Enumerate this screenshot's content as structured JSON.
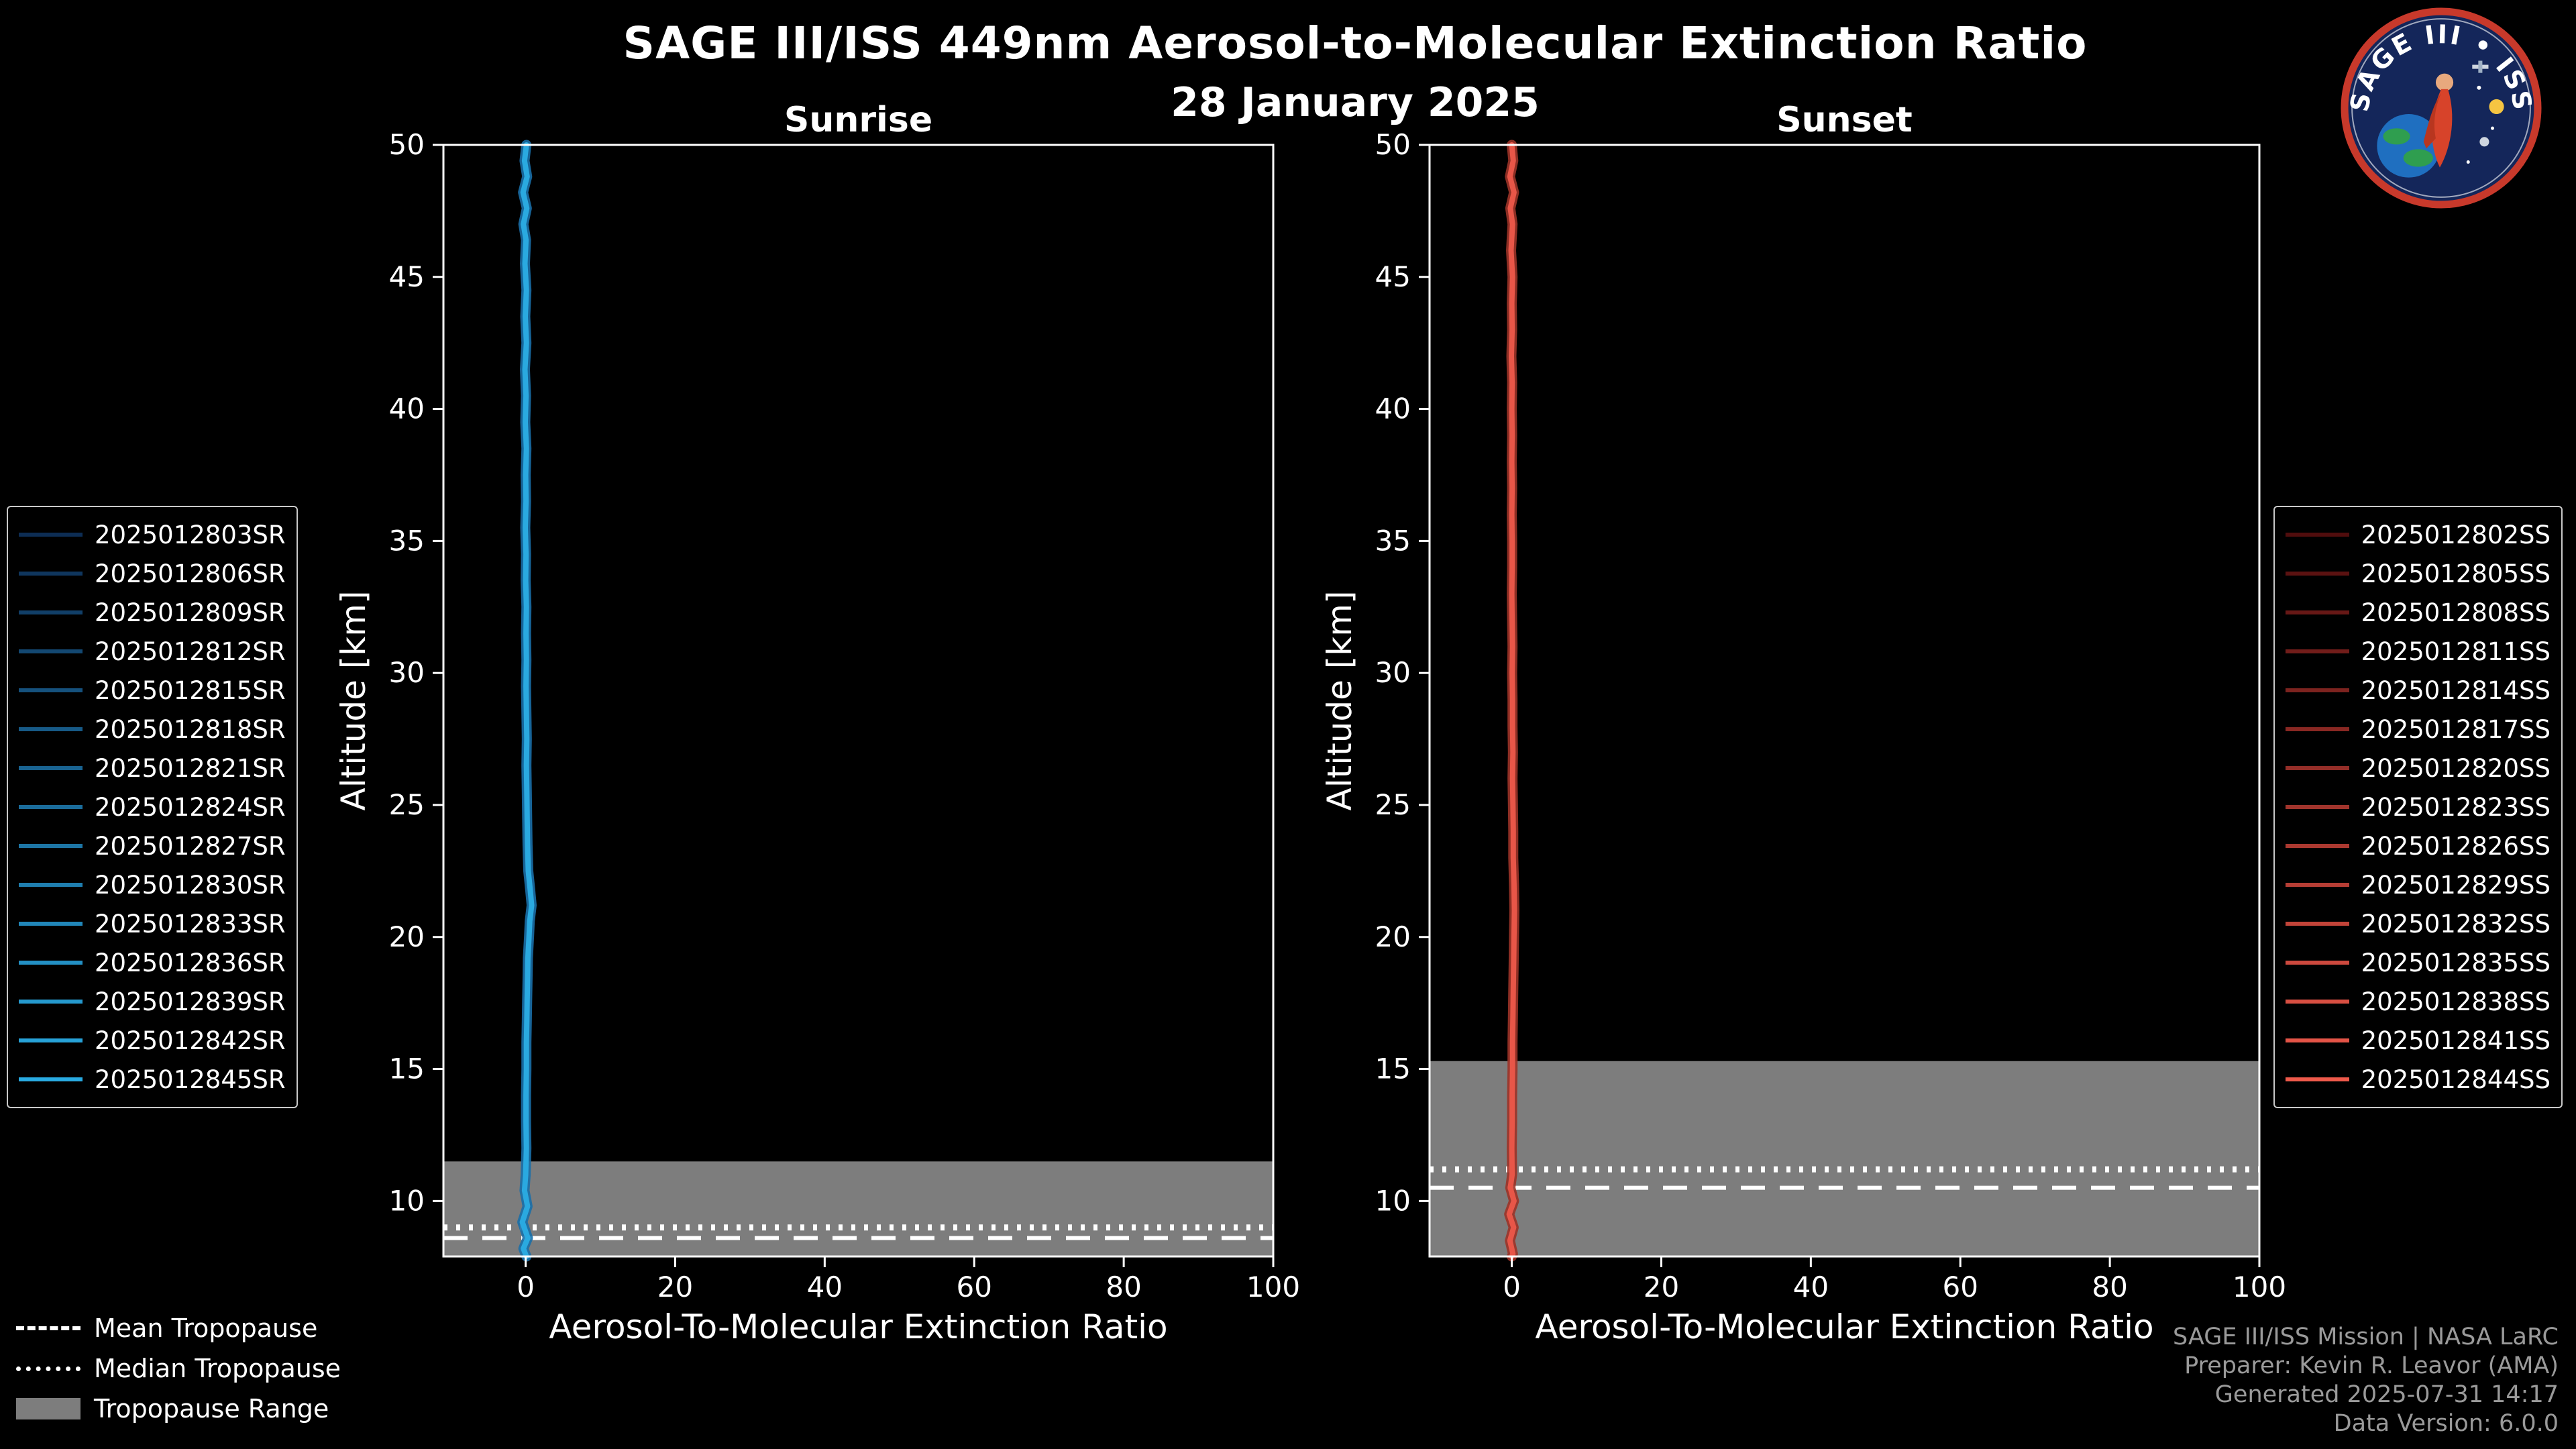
{
  "header": {
    "title": "SAGE III/ISS 449nm Aerosol-to-Molecular Extinction Ratio",
    "date": "28 January 2025"
  },
  "logo": {
    "title": "SAGE III • ISS"
  },
  "tropopause_legend": {
    "mean": "Mean Tropopause",
    "median": "Median Tropopause",
    "range": "Tropopause Range"
  },
  "credits": {
    "line1": "SAGE III/ISS Mission | NASA LaRC",
    "line2": "Preparer: Kevin R. Leavor (AMA)",
    "line3": "Generated 2025-07-31 14:17",
    "line4": "Data Version: 6.0.0"
  },
  "chart_data": [
    {
      "type": "line",
      "title": "Sunrise",
      "xlabel": "Aerosol-To-Molecular Extinction Ratio",
      "ylabel": "Altitude [km]",
      "xlim": [
        -11,
        100
      ],
      "ylim": [
        7.9,
        50
      ],
      "xticks": [
        0,
        20,
        40,
        60,
        80,
        100
      ],
      "yticks": [
        10,
        15,
        20,
        25,
        30,
        35,
        40,
        45,
        50
      ],
      "grid": false,
      "legend_position": "outside-left",
      "profile_color": "#2aa9e0",
      "profile_shadow_color": "#1a6fa8",
      "band_color": "#7d7d7d",
      "mean_tropopause_km": 8.6,
      "median_tropopause_km": 9.0,
      "tropopause_range_km": [
        7.9,
        11.5
      ],
      "series": [
        {
          "name": "2025012803SR",
          "color": "#0d2d54"
        },
        {
          "name": "2025012806SR",
          "color": "#0f365e"
        },
        {
          "name": "2025012809SR",
          "color": "#113f68"
        },
        {
          "name": "2025012812SR",
          "color": "#134872"
        },
        {
          "name": "2025012815SR",
          "color": "#15517d"
        },
        {
          "name": "2025012818SR",
          "color": "#175a87"
        },
        {
          "name": "2025012821SR",
          "color": "#196391"
        },
        {
          "name": "2025012824SR",
          "color": "#1b6c9b"
        },
        {
          "name": "2025012827SR",
          "color": "#1d75a5"
        },
        {
          "name": "2025012830SR",
          "color": "#1f7eaf"
        },
        {
          "name": "2025012833SR",
          "color": "#2187b9"
        },
        {
          "name": "2025012836SR",
          "color": "#2390c4"
        },
        {
          "name": "2025012839SR",
          "color": "#2599ce"
        },
        {
          "name": "2025012842SR",
          "color": "#27a2d8"
        },
        {
          "name": "2025012845SR",
          "color": "#29abe2"
        }
      ],
      "profile": [
        [
          50,
          0.1
        ],
        [
          49.4,
          -0.15
        ],
        [
          48.8,
          0.2
        ],
        [
          48.2,
          -0.35
        ],
        [
          47.6,
          0.15
        ],
        [
          47,
          -0.3
        ],
        [
          46.4,
          0.05
        ],
        [
          45.5,
          -0.1
        ],
        [
          44.5,
          0.1
        ],
        [
          43.5,
          -0.05
        ],
        [
          42.5,
          0.1
        ],
        [
          41.5,
          -0.1
        ],
        [
          40.5,
          0.05
        ],
        [
          39.5,
          -0.05
        ],
        [
          38.5,
          0.1
        ],
        [
          37.5,
          0
        ],
        [
          36.5,
          0.05
        ],
        [
          35.5,
          -0.05
        ],
        [
          34.5,
          0.05
        ],
        [
          33.5,
          0
        ],
        [
          32.5,
          0.1
        ],
        [
          31.5,
          0.05
        ],
        [
          30.5,
          0.1
        ],
        [
          29.5,
          0.05
        ],
        [
          28.5,
          0.1
        ],
        [
          27.5,
          0.15
        ],
        [
          26.5,
          0.1
        ],
        [
          25.5,
          0.15
        ],
        [
          24.5,
          0.2
        ],
        [
          23.5,
          0.25
        ],
        [
          22.5,
          0.35
        ],
        [
          21.8,
          0.6
        ],
        [
          21.2,
          0.8
        ],
        [
          20.6,
          0.55
        ],
        [
          20,
          0.45
        ],
        [
          19.2,
          0.3
        ],
        [
          18.4,
          0.25
        ],
        [
          17.6,
          0.2
        ],
        [
          16.8,
          0.15
        ],
        [
          16,
          0.1
        ],
        [
          15,
          0.1
        ],
        [
          14,
          0.05
        ],
        [
          13,
          0.05
        ],
        [
          12,
          0.1
        ],
        [
          11,
          0
        ],
        [
          10.4,
          -0.15
        ],
        [
          9.8,
          0.25
        ],
        [
          9.2,
          -0.45
        ],
        [
          8.6,
          0.3
        ],
        [
          8.2,
          -0.3
        ],
        [
          7.9,
          0.1
        ]
      ]
    },
    {
      "type": "line",
      "title": "Sunset",
      "xlabel": "Aerosol-To-Molecular Extinction Ratio",
      "ylabel": "Altitude [km]",
      "xlim": [
        -11,
        100
      ],
      "ylim": [
        7.9,
        50
      ],
      "xticks": [
        0,
        20,
        40,
        60,
        80,
        100
      ],
      "yticks": [
        10,
        15,
        20,
        25,
        30,
        35,
        40,
        45,
        50
      ],
      "grid": false,
      "legend_position": "outside-right",
      "profile_color": "#e85648",
      "profile_shadow_color": "#9c3328",
      "band_color": "#7d7d7d",
      "mean_tropopause_km": 10.5,
      "median_tropopause_km": 11.2,
      "tropopause_range_km": [
        7.9,
        15.3
      ],
      "series": [
        {
          "name": "2025012802SS",
          "color": "#500d0d"
        },
        {
          "name": "2025012805SS",
          "color": "#5b1211"
        },
        {
          "name": "2025012808SS",
          "color": "#671816"
        },
        {
          "name": "2025012811SS",
          "color": "#721d1a"
        },
        {
          "name": "2025012814SS",
          "color": "#7d231f"
        },
        {
          "name": "2025012817SS",
          "color": "#892823"
        },
        {
          "name": "2025012820SS",
          "color": "#942e28"
        },
        {
          "name": "2025012823SS",
          "color": "#a0342c"
        },
        {
          "name": "2025012826SS",
          "color": "#ab3930"
        },
        {
          "name": "2025012829SS",
          "color": "#b63e35"
        },
        {
          "name": "2025012832SS",
          "color": "#c24439"
        },
        {
          "name": "2025012835SS",
          "color": "#cd493e"
        },
        {
          "name": "2025012838SS",
          "color": "#d84f42"
        },
        {
          "name": "2025012841SS",
          "color": "#e45447"
        },
        {
          "name": "2025012844SS",
          "color": "#ef5a4b"
        }
      ],
      "profile": [
        [
          50,
          0
        ],
        [
          49.4,
          0.2
        ],
        [
          48.8,
          -0.25
        ],
        [
          48.2,
          0.3
        ],
        [
          47.6,
          -0.2
        ],
        [
          47,
          0.1
        ],
        [
          46,
          -0.1
        ],
        [
          45,
          0.1
        ],
        [
          44,
          0
        ],
        [
          43,
          0.05
        ],
        [
          42,
          -0.05
        ],
        [
          41,
          0.05
        ],
        [
          40,
          0
        ],
        [
          39,
          0.05
        ],
        [
          38,
          0
        ],
        [
          37,
          0.05
        ],
        [
          36,
          0
        ],
        [
          35,
          0.05
        ],
        [
          34,
          0.05
        ],
        [
          33,
          0
        ],
        [
          32,
          0.05
        ],
        [
          31,
          0.1
        ],
        [
          30,
          0.05
        ],
        [
          29,
          0.1
        ],
        [
          28,
          0.1
        ],
        [
          27,
          0.15
        ],
        [
          26,
          0.1
        ],
        [
          25,
          0.15
        ],
        [
          24,
          0.2
        ],
        [
          23,
          0.2
        ],
        [
          22,
          0.3
        ],
        [
          21,
          0.35
        ],
        [
          20,
          0.3
        ],
        [
          19,
          0.25
        ],
        [
          18,
          0.2
        ],
        [
          17,
          0.15
        ],
        [
          16,
          0.1
        ],
        [
          15,
          0.1
        ],
        [
          14,
          0.05
        ],
        [
          13,
          0.05
        ],
        [
          12,
          0
        ],
        [
          11,
          0.05
        ],
        [
          10.5,
          -0.2
        ],
        [
          10,
          0.3
        ],
        [
          9.5,
          -0.35
        ],
        [
          9,
          0.25
        ],
        [
          8.5,
          -0.25
        ],
        [
          8,
          0.15
        ],
        [
          7.9,
          0
        ]
      ]
    }
  ]
}
